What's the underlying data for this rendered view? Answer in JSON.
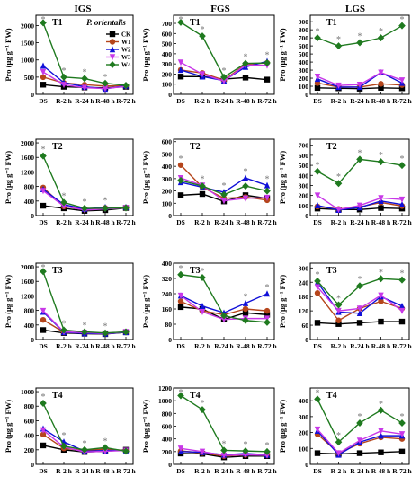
{
  "column_titles": [
    "IGS",
    "FGS",
    "LGS"
  ],
  "species": "P. orientalis",
  "ylabel": "Pro (μg g⁻¹ FW)",
  "star_symbol": "*",
  "legend": [
    {
      "name": "CK",
      "color": "#000000",
      "marker": "square"
    },
    {
      "name": "W1",
      "color": "#b5451b",
      "marker": "circle"
    },
    {
      "name": "W2",
      "color": "#1010d8",
      "marker": "triangle-up"
    },
    {
      "name": "W3",
      "color": "#c838e8",
      "marker": "triangle-down"
    },
    {
      "name": "W4",
      "color": "#1f7a1f",
      "marker": "diamond"
    }
  ],
  "chart_data": [
    {
      "type": "line",
      "title": "T1",
      "stage": "IGS",
      "x": [
        "DS",
        "R-2 h",
        "R-24 h",
        "R-48 h",
        "R-72 h"
      ],
      "yticks": [
        0,
        500,
        1000,
        1500,
        2000
      ],
      "ylim": [
        0,
        2300
      ],
      "series": [
        {
          "name": "CK",
          "values": [
            280,
            220,
            200,
            190,
            220
          ]
        },
        {
          "name": "W1",
          "values": [
            500,
            330,
            280,
            240,
            250
          ]
        },
        {
          "name": "W2",
          "values": [
            830,
            340,
            220,
            160,
            250
          ]
        },
        {
          "name": "W3",
          "values": [
            650,
            280,
            190,
            170,
            230
          ]
        },
        {
          "name": "W4",
          "values": [
            2080,
            500,
            460,
            320,
            260
          ]
        }
      ],
      "stars": [
        0,
        1,
        2,
        3
      ]
    },
    {
      "type": "line",
      "title": "T1",
      "stage": "FGS",
      "x": [
        "DS",
        "R-2 h",
        "R-24 h",
        "R-48 h",
        "R-72 h"
      ],
      "yticks": [
        0,
        100,
        200,
        300,
        400,
        500,
        600,
        700
      ],
      "ylim": [
        0,
        780
      ],
      "series": [
        {
          "name": "CK",
          "values": [
            175,
            175,
            150,
            165,
            145
          ]
        },
        {
          "name": "W1",
          "values": [
            240,
            210,
            140,
            295,
            310
          ]
        },
        {
          "name": "W2",
          "values": [
            240,
            175,
            135,
            270,
            325
          ]
        },
        {
          "name": "W3",
          "values": [
            315,
            200,
            130,
            290,
            285
          ]
        },
        {
          "name": "W4",
          "values": [
            710,
            575,
            170,
            305,
            310
          ]
        }
      ],
      "stars": [
        0,
        1,
        2,
        3,
        4
      ]
    },
    {
      "type": "line",
      "title": "T1",
      "stage": "LGS",
      "x": [
        "DS",
        "R-2 h",
        "R-24 h",
        "R-48 h",
        "R-72 h"
      ],
      "yticks": [
        0,
        100,
        200,
        300,
        400,
        500,
        600,
        700,
        800,
        900
      ],
      "ylim": [
        0,
        980
      ],
      "series": [
        {
          "name": "CK",
          "values": [
            80,
            75,
            70,
            80,
            75
          ]
        },
        {
          "name": "W1",
          "values": [
            140,
            90,
            90,
            130,
            115
          ]
        },
        {
          "name": "W2",
          "values": [
            190,
            90,
            90,
            270,
            140
          ]
        },
        {
          "name": "W3",
          "values": [
            220,
            110,
            120,
            270,
            175
          ]
        },
        {
          "name": "W4",
          "values": [
            700,
            600,
            640,
            700,
            850
          ]
        }
      ],
      "stars": [
        0,
        1,
        2,
        3,
        4
      ]
    },
    {
      "type": "line",
      "title": "T2",
      "stage": "IGS",
      "x": [
        "DS",
        "R-2 h",
        "R-24 h",
        "R-48 h",
        "R-72 h"
      ],
      "yticks": [
        0,
        400,
        800,
        1200,
        1600,
        2000
      ],
      "ylim": [
        0,
        2100
      ],
      "series": [
        {
          "name": "CK",
          "values": [
            270,
            200,
            130,
            150,
            210
          ]
        },
        {
          "name": "W1",
          "values": [
            770,
            250,
            170,
            210,
            220
          ]
        },
        {
          "name": "W2",
          "values": [
            720,
            300,
            180,
            230,
            230
          ]
        },
        {
          "name": "W3",
          "values": [
            680,
            260,
            150,
            180,
            210
          ]
        },
        {
          "name": "W4",
          "values": [
            1640,
            360,
            200,
            200,
            210
          ]
        }
      ],
      "stars": [
        0,
        1,
        2,
        3
      ]
    },
    {
      "type": "line",
      "title": "T2",
      "stage": "FGS",
      "x": [
        "DS",
        "R-2 h",
        "R-24 h",
        "R-48 h",
        "R-72 h"
      ],
      "yticks": [
        0,
        100,
        200,
        300,
        400,
        500,
        600
      ],
      "ylim": [
        0,
        620
      ],
      "series": [
        {
          "name": "CK",
          "values": [
            165,
            175,
            115,
            165,
            140
          ]
        },
        {
          "name": "W1",
          "values": [
            410,
            230,
            140,
            150,
            125
          ]
        },
        {
          "name": "W2",
          "values": [
            270,
            230,
            190,
            305,
            245
          ]
        },
        {
          "name": "W3",
          "values": [
            305,
            245,
            120,
            140,
            145
          ]
        },
        {
          "name": "W4",
          "values": [
            285,
            240,
            170,
            240,
            200
          ]
        }
      ],
      "stars": [
        0,
        1,
        2,
        3,
        4
      ]
    },
    {
      "type": "line",
      "title": "T2",
      "stage": "LGS",
      "x": [
        "DS",
        "R-2 h",
        "R-24 h",
        "R-48 h",
        "R-72 h"
      ],
      "yticks": [
        0,
        100,
        200,
        300,
        400,
        500,
        600,
        700
      ],
      "ylim": [
        0,
        760
      ],
      "series": [
        {
          "name": "CK",
          "values": [
            70,
            60,
            60,
            75,
            70
          ]
        },
        {
          "name": "W1",
          "values": [
            90,
            65,
            85,
            130,
            95
          ]
        },
        {
          "name": "W2",
          "values": [
            100,
            55,
            80,
            145,
            110
          ]
        },
        {
          "name": "W3",
          "values": [
            200,
            60,
            100,
            175,
            160
          ]
        },
        {
          "name": "W4",
          "values": [
            440,
            320,
            560,
            535,
            500
          ]
        }
      ],
      "stars": [
        0,
        1,
        2,
        3,
        4
      ]
    },
    {
      "type": "line",
      "title": "T3",
      "stage": "IGS",
      "x": [
        "DS",
        "R-2 h",
        "R-24 h",
        "R-48 h",
        "R-72 h"
      ],
      "yticks": [
        0,
        400,
        800,
        1200,
        1600,
        2000
      ],
      "ylim": [
        0,
        2100
      ],
      "series": [
        {
          "name": "CK",
          "values": [
            260,
            180,
            160,
            150,
            200
          ]
        },
        {
          "name": "W1",
          "values": [
            540,
            200,
            170,
            160,
            200
          ]
        },
        {
          "name": "W2",
          "values": [
            760,
            200,
            170,
            160,
            200
          ]
        },
        {
          "name": "W3",
          "values": [
            790,
            210,
            190,
            170,
            210
          ]
        },
        {
          "name": "W4",
          "values": [
            1870,
            260,
            210,
            180,
            210
          ]
        }
      ],
      "stars": [
        0,
        1,
        2,
        3
      ]
    },
    {
      "type": "line",
      "title": "T3",
      "stage": "FGS",
      "x": [
        "DS",
        "R-2 h",
        "R-24 h",
        "R-48 h",
        "R-72 h"
      ],
      "yticks": [
        0,
        80,
        160,
        240,
        320,
        400
      ],
      "ylim": [
        0,
        400
      ],
      "series": [
        {
          "name": "CK",
          "values": [
            170,
            160,
            105,
            140,
            130
          ]
        },
        {
          "name": "W1",
          "values": [
            200,
            150,
            130,
            160,
            150
          ]
        },
        {
          "name": "W2",
          "values": [
            230,
            175,
            140,
            190,
            240
          ]
        },
        {
          "name": "W3",
          "values": [
            230,
            145,
            105,
            110,
            110
          ]
        },
        {
          "name": "W4",
          "values": [
            340,
            325,
            125,
            100,
            90
          ]
        }
      ],
      "stars": [
        0,
        1,
        3,
        4
      ]
    },
    {
      "type": "line",
      "title": "T3",
      "stage": "LGS",
      "x": [
        "DS",
        "R-2 h",
        "R-24 h",
        "R-48 h",
        "R-72 h"
      ],
      "yticks": [
        0,
        60,
        120,
        180,
        240,
        300
      ],
      "ylim": [
        0,
        320
      ],
      "series": [
        {
          "name": "CK",
          "values": [
            70,
            65,
            70,
            75,
            75
          ]
        },
        {
          "name": "W1",
          "values": [
            195,
            80,
            130,
            160,
            130
          ]
        },
        {
          "name": "W2",
          "values": [
            240,
            115,
            110,
            180,
            140
          ]
        },
        {
          "name": "W3",
          "values": [
            220,
            120,
            130,
            185,
            120
          ]
        },
        {
          "name": "W4",
          "values": [
            245,
            145,
            225,
            255,
            250
          ]
        }
      ],
      "stars": [
        0,
        1,
        2,
        3,
        4
      ]
    },
    {
      "type": "line",
      "title": "T4",
      "stage": "IGS",
      "x": [
        "DS",
        "R-2 h",
        "R-24 h",
        "R-48 h",
        "R-72 h"
      ],
      "yticks": [
        0,
        200,
        400,
        600,
        800,
        1000
      ],
      "ylim": [
        0,
        1050
      ],
      "series": [
        {
          "name": "CK",
          "values": [
            260,
            200,
            170,
            180,
            200
          ]
        },
        {
          "name": "W1",
          "values": [
            410,
            220,
            190,
            210,
            190
          ]
        },
        {
          "name": "W2",
          "values": [
            490,
            310,
            180,
            190,
            190
          ]
        },
        {
          "name": "W3",
          "values": [
            470,
            240,
            170,
            180,
            190
          ]
        },
        {
          "name": "W4",
          "values": [
            840,
            250,
            200,
            230,
            180
          ]
        }
      ],
      "stars": [
        0,
        1,
        2,
        3
      ]
    },
    {
      "type": "line",
      "title": "T4",
      "stage": "FGS",
      "x": [
        "DS",
        "R-2 h",
        "R-24 h",
        "R-48 h",
        "R-72 h"
      ],
      "yticks": [
        0,
        200,
        400,
        600,
        800,
        1000,
        1200
      ],
      "ylim": [
        0,
        1200
      ],
      "series": [
        {
          "name": "CK",
          "values": [
            170,
            165,
            110,
            130,
            130
          ]
        },
        {
          "name": "W1",
          "values": [
            210,
            180,
            130,
            150,
            160
          ]
        },
        {
          "name": "W2",
          "values": [
            200,
            190,
            150,
            170,
            150
          ]
        },
        {
          "name": "W3",
          "values": [
            250,
            200,
            140,
            150,
            140
          ]
        },
        {
          "name": "W4",
          "values": [
            1080,
            860,
            220,
            210,
            200
          ]
        }
      ],
      "stars": [
        0,
        1,
        2,
        3,
        4
      ]
    },
    {
      "type": "line",
      "title": "T4",
      "stage": "LGS",
      "x": [
        "DS",
        "R-2 h",
        "R-24 h",
        "R-48 h",
        "R-72 h"
      ],
      "yticks": [
        0,
        100,
        200,
        300,
        400,
        500
      ],
      "ylim": [
        0,
        480
      ],
      "series": [
        {
          "name": "CK",
          "values": [
            70,
            65,
            70,
            75,
            80
          ]
        },
        {
          "name": "W1",
          "values": [
            190,
            70,
            130,
            170,
            160
          ]
        },
        {
          "name": "W2",
          "values": [
            210,
            60,
            140,
            180,
            180
          ]
        },
        {
          "name": "W3",
          "values": [
            220,
            70,
            150,
            210,
            190
          ]
        },
        {
          "name": "W4",
          "values": [
            410,
            140,
            260,
            340,
            260
          ]
        }
      ],
      "stars": [
        0,
        1,
        2,
        3,
        4
      ]
    }
  ]
}
